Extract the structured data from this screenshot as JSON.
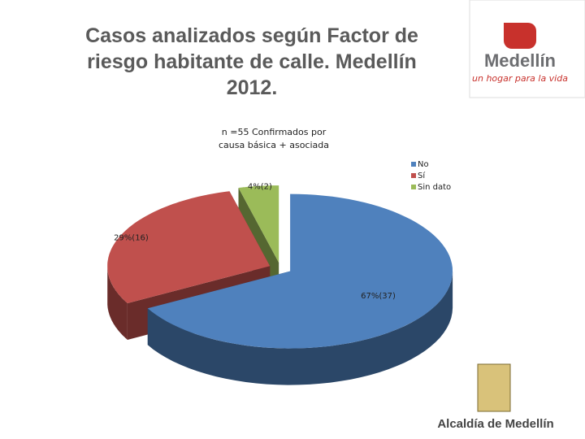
{
  "chart_data": {
    "type": "pie",
    "title": "Casos analizados según Factor de riesgo habitante de calle. Medellín 2012.",
    "subtitle": "n =55 Confirmados por causa básica + asociada",
    "categories": [
      "No",
      "Sí",
      "Sin dato"
    ],
    "values": [
      67,
      29,
      4
    ],
    "value_labels": [
      "67%(37)",
      "29%(16)",
      "4%(2)"
    ],
    "colors": [
      "#4f81bd",
      "#c0504d",
      "#9bbb59"
    ],
    "legend": "right"
  },
  "logos": {
    "top": {
      "name": "Medellín",
      "tagline": "un hogar para la vida"
    },
    "bottom": {
      "name": "Alcaldía de Medellín"
    }
  }
}
